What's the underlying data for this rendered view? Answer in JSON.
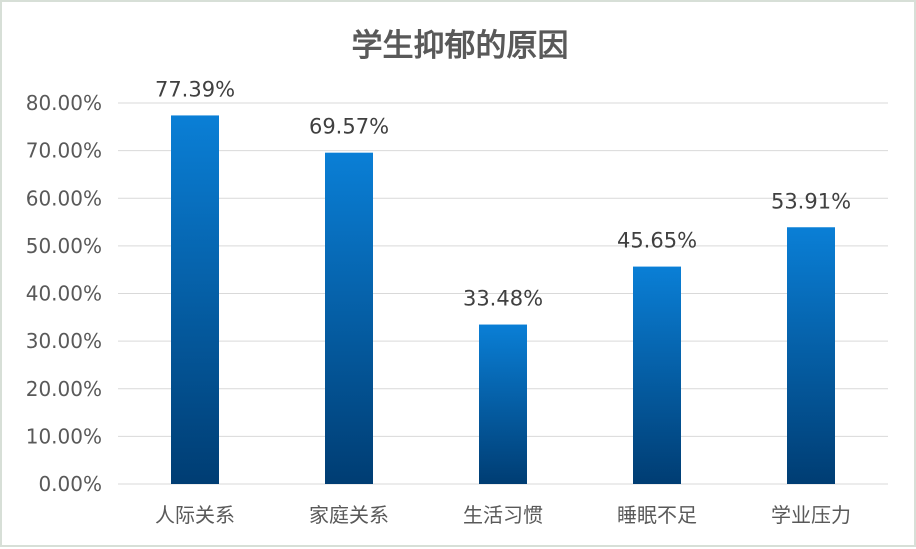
{
  "chart_data": {
    "type": "bar",
    "title": "学生抑郁的原因",
    "categories": [
      "人际关系",
      "家庭关系",
      "生活习惯",
      "睡眠不足",
      "学业压力"
    ],
    "values": [
      77.39,
      69.57,
      33.48,
      45.65,
      53.91
    ],
    "data_labels": [
      "77.39%",
      "69.57%",
      "33.48%",
      "45.65%",
      "53.91%"
    ],
    "ylim": [
      0,
      80
    ],
    "yticks": [
      0,
      10,
      20,
      30,
      40,
      50,
      60,
      70,
      80
    ],
    "ytick_labels": [
      "0.00%",
      "10.00%",
      "20.00%",
      "30.00%",
      "40.00%",
      "50.00%",
      "60.00%",
      "70.00%",
      "80.00%"
    ],
    "xlabel": "",
    "ylabel": "",
    "grid": true,
    "legend": "none",
    "colors": {
      "bar_top": "#0a7fd6",
      "bar_bottom": "#003d73",
      "grid": "#d9d9d9",
      "text": "#595959"
    }
  }
}
